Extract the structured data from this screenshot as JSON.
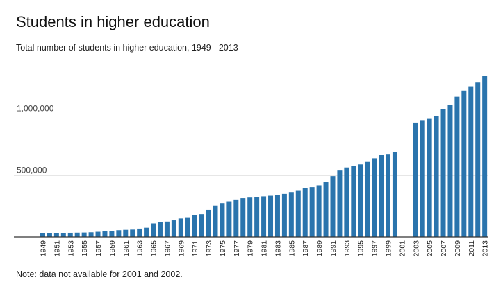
{
  "title": "Students in higher education",
  "subtitle": "Total number of students in higher education, 1949 - 2013",
  "note": "Note: data not available for 2001 and 2002.",
  "colors": {
    "bar": "#2a74ad",
    "grid": "#dddddd",
    "axis": "#333333"
  },
  "chart_data": {
    "type": "bar",
    "title": "Students in higher education",
    "subtitle": "Total number of students in higher education, 1949 - 2013",
    "xlabel": "",
    "ylabel": "",
    "ylim": [
      0,
      1400000
    ],
    "yticks": [
      500000,
      1000000
    ],
    "ytick_labels": [
      "500,000",
      "1,000,000"
    ],
    "grid": true,
    "legend": "none",
    "x": [
      1949,
      1950,
      1951,
      1952,
      1953,
      1954,
      1955,
      1956,
      1957,
      1958,
      1959,
      1960,
      1961,
      1962,
      1963,
      1964,
      1965,
      1966,
      1967,
      1968,
      1969,
      1970,
      1971,
      1972,
      1973,
      1974,
      1975,
      1976,
      1977,
      1978,
      1979,
      1980,
      1981,
      1982,
      1983,
      1984,
      1985,
      1986,
      1987,
      1988,
      1989,
      1990,
      1991,
      1992,
      1993,
      1994,
      1995,
      1996,
      1997,
      1998,
      1999,
      2000,
      2001,
      2002,
      2003,
      2004,
      2005,
      2006,
      2007,
      2008,
      2009,
      2010,
      2011,
      2012,
      2013
    ],
    "xtick_labels": [
      "1949",
      "1951",
      "1953",
      "1955",
      "1957",
      "1959",
      "1961",
      "1963",
      "1965",
      "1967",
      "1969",
      "1971",
      "1973",
      "1975",
      "1977",
      "1979",
      "1981",
      "1983",
      "1985",
      "1987",
      "1989",
      "1991",
      "1993",
      "1995",
      "1997",
      "1999",
      "2001",
      "2003",
      "2005",
      "2007",
      "2009",
      "2011",
      "2013"
    ],
    "series": [
      {
        "values": [
          30000,
          31000,
          32000,
          33000,
          34000,
          35000,
          36000,
          38000,
          42000,
          45000,
          50000,
          55000,
          58000,
          60000,
          68000,
          75000,
          110000,
          120000,
          125000,
          135000,
          150000,
          160000,
          175000,
          185000,
          220000,
          255000,
          275000,
          290000,
          305000,
          315000,
          320000,
          325000,
          330000,
          335000,
          340000,
          350000,
          365000,
          380000,
          395000,
          405000,
          420000,
          445000,
          495000,
          540000,
          565000,
          580000,
          590000,
          610000,
          640000,
          665000,
          675000,
          690000,
          null,
          null,
          930000,
          950000,
          960000,
          985000,
          1040000,
          1075000,
          1140000,
          1190000,
          1225000,
          1255000,
          1310000
        ]
      }
    ]
  }
}
